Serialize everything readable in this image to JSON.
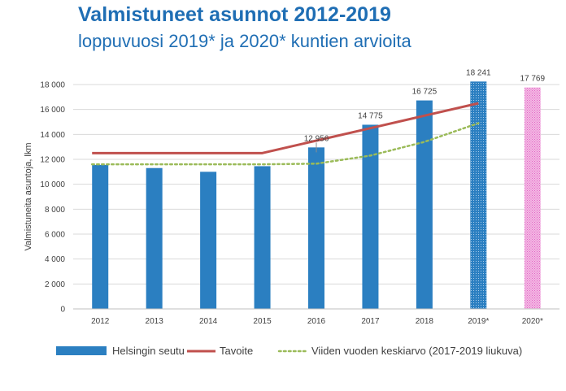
{
  "header": {
    "title": "Valmistuneet asunnot 2012-2019",
    "subtitle": "loppuvuosi 2019* ja 2020* kuntien arvioita"
  },
  "chart_data": {
    "type": "bar",
    "title": "Valmistuneet asunnot 2012-2019",
    "subtitle": "loppuvuosi 2019* ja 2020* kuntien arvioita",
    "xlabel": "",
    "ylabel": "Valmistuneita asuntoja, lkm",
    "ylim": [
      0,
      18000
    ],
    "yticks": [
      0,
      2000,
      4000,
      6000,
      8000,
      10000,
      12000,
      14000,
      16000,
      18000
    ],
    "ytick_labels": [
      "0",
      "2 000",
      "4 000",
      "6 000",
      "8 000",
      "10 000",
      "12 000",
      "14 000",
      "16 000",
      "18 000"
    ],
    "categories": [
      "2012",
      "2013",
      "2014",
      "2015",
      "2016",
      "2017",
      "2018",
      "2019*",
      "2020*"
    ],
    "series": [
      {
        "name": "Helsingin seutu",
        "kind": "bar",
        "color": "#2b7fc1",
        "values": [
          11550,
          11300,
          11000,
          11450,
          12956,
          14775,
          16725,
          18241,
          17769
        ],
        "data_labels": [
          "",
          "",
          "",
          "",
          "12 956",
          "14 775",
          "16 725",
          "18 241",
          "17 769"
        ],
        "patterns": [
          "solid",
          "solid",
          "solid",
          "solid",
          "solid",
          "solid",
          "solid",
          "dotted-blue",
          "dotted-pink"
        ]
      },
      {
        "name": "Tavoite",
        "kind": "line",
        "color": "#c0504d",
        "values": [
          12500,
          12500,
          12500,
          12500,
          13500,
          14500,
          15500,
          16500,
          null
        ]
      },
      {
        "name": "Viiden vuoden keskiarvo (2017-2019 liukuva)",
        "kind": "dotted-line",
        "color": "#9bbb59",
        "values": [
          11600,
          11600,
          11600,
          11600,
          11650,
          12300,
          13400,
          14900,
          null
        ]
      }
    ],
    "estimate_color": "#e87ccd",
    "grid": true,
    "legend_position": "bottom"
  }
}
